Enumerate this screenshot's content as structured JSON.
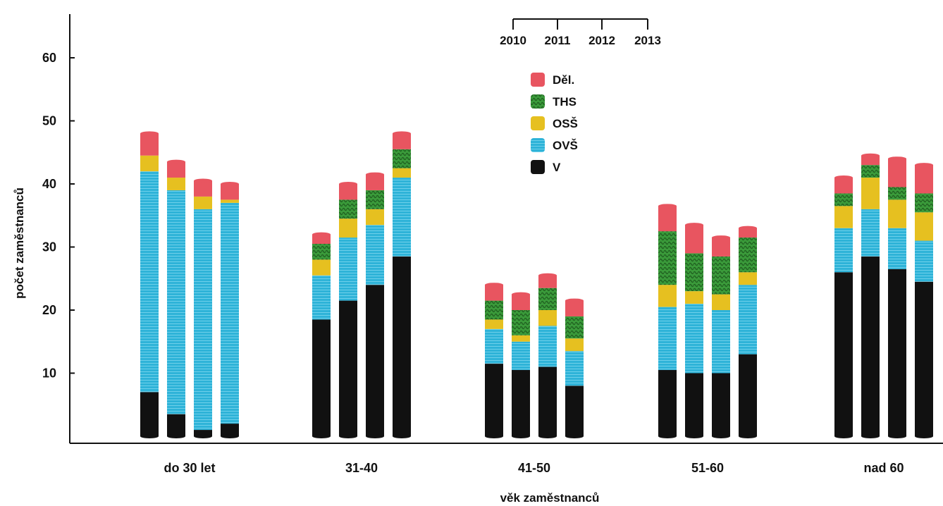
{
  "chart_data": {
    "type": "bar",
    "stacked": true,
    "xlabel": "věk zaměstnanců",
    "ylabel": "počet zaměstnanců",
    "ylim": [
      0,
      65
    ],
    "yticks": [
      10,
      20,
      30,
      40,
      50,
      60
    ],
    "categories": [
      "do 30 let",
      "31-40",
      "41-50",
      "51-60",
      "nad 60"
    ],
    "years": [
      "2010",
      "2011",
      "2012",
      "2013"
    ],
    "legend_position": "top-center",
    "series": [
      {
        "name": "V",
        "color": "#111111",
        "values": [
          [
            7,
            3.5,
            1,
            2
          ],
          [
            18.5,
            21.5,
            24,
            28.5
          ],
          [
            11.5,
            10.5,
            11,
            8
          ],
          [
            10.5,
            10,
            10,
            13
          ],
          [
            26,
            28.5,
            26.5,
            24.5
          ]
        ]
      },
      {
        "name": "OVŠ",
        "color": "#2eb3d8",
        "values": [
          [
            35,
            35.5,
            35,
            35
          ],
          [
            7,
            10,
            9.5,
            12.5
          ],
          [
            5.5,
            4.5,
            6.5,
            5.5
          ],
          [
            10,
            11,
            10,
            11
          ],
          [
            7,
            7.5,
            6.5,
            6.5
          ]
        ]
      },
      {
        "name": "OSŠ",
        "color": "#e6c020",
        "values": [
          [
            2.5,
            2,
            2,
            0.5
          ],
          [
            2.5,
            3,
            2.5,
            1.5
          ],
          [
            1.5,
            1,
            2.5,
            2
          ],
          [
            3.5,
            2,
            2.5,
            2
          ],
          [
            3.5,
            5,
            4.5,
            4.5
          ]
        ]
      },
      {
        "name": "THS",
        "color": "#3a9a3a",
        "values": [
          [
            0,
            0,
            0,
            0
          ],
          [
            2.5,
            3,
            3,
            3
          ],
          [
            3,
            4,
            3.5,
            3.5
          ],
          [
            8.5,
            6,
            6,
            5.5
          ],
          [
            2,
            2,
            2,
            3
          ]
        ]
      },
      {
        "name": "Děl.",
        "color": "#e85560",
        "values": [
          [
            3.5,
            2.5,
            2.5,
            2.5
          ],
          [
            1.5,
            2.5,
            2.5,
            2.5
          ],
          [
            2.5,
            2.5,
            2,
            2.5
          ],
          [
            4,
            4.5,
            3,
            1.5
          ],
          [
            2.5,
            1.5,
            4.5,
            4.5
          ]
        ]
      }
    ]
  }
}
